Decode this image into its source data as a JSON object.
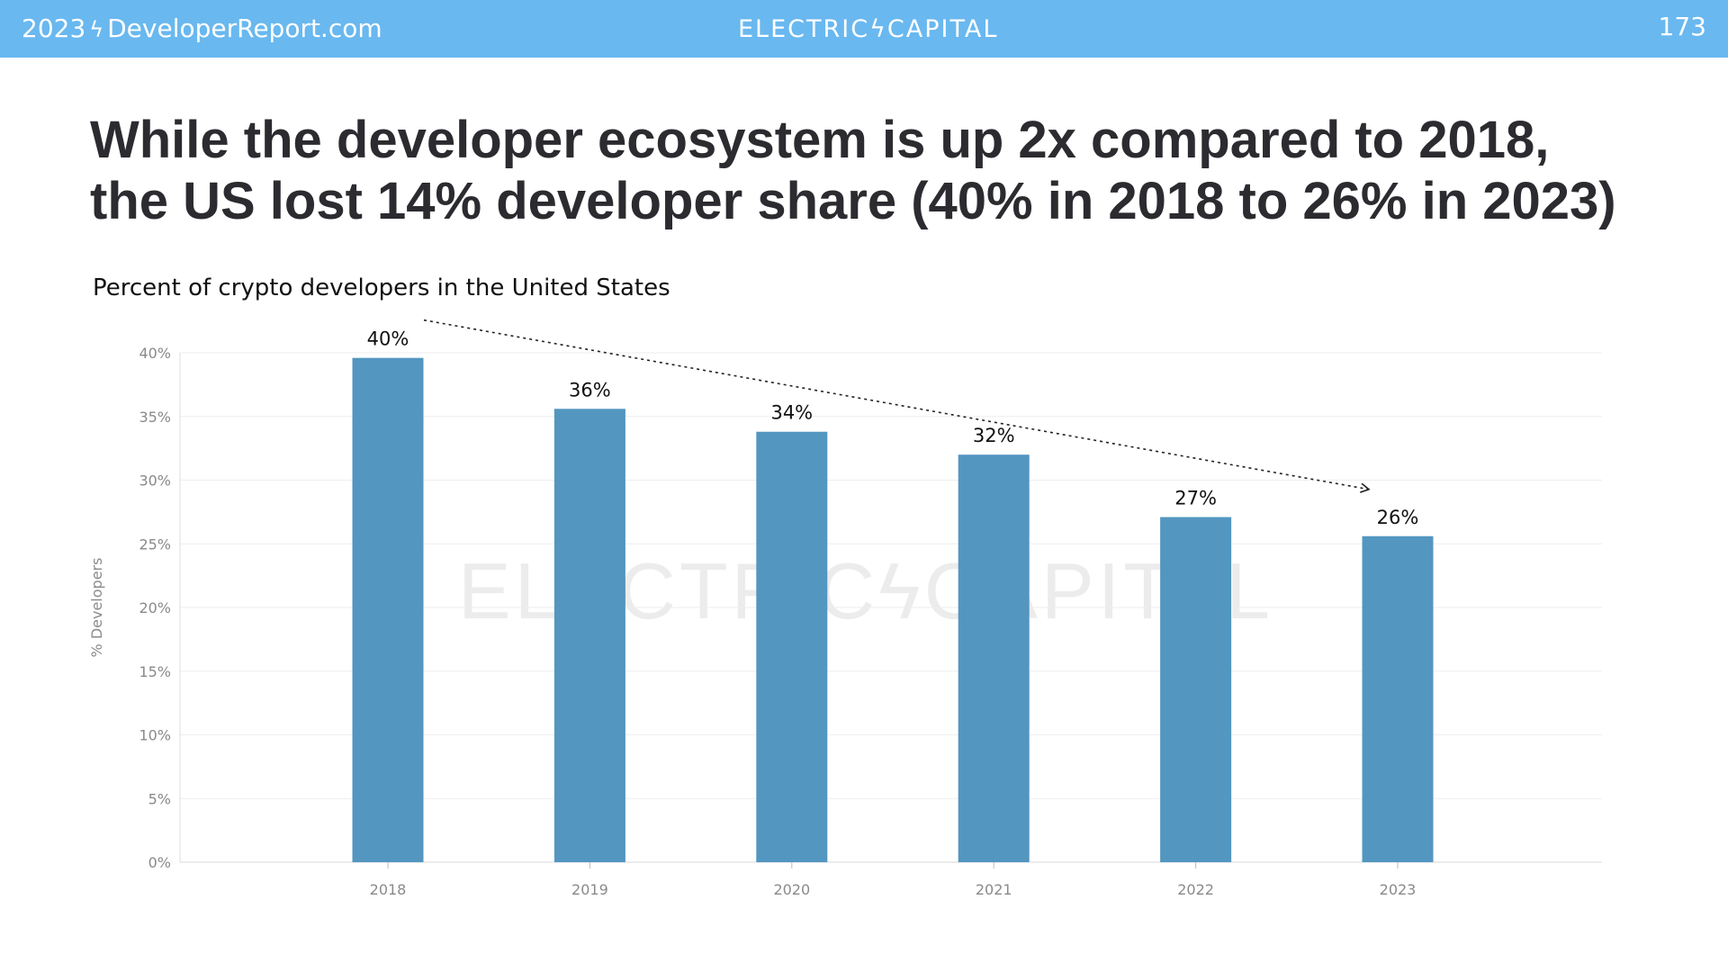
{
  "header": {
    "site_year": "2023",
    "site_name": "DeveloperReport.com",
    "brand": "ELECTRICϟCAPITAL",
    "page_number": "173",
    "bolt_icon": "lightning-bolt-icon"
  },
  "headline": {
    "line1": "While the developer ecosystem is up 2x compared to 2018,",
    "line2": "the US lost 14% developer share (40% in 2018 to 26% in 2023)"
  },
  "colors": {
    "header_bg": "#69b8ef",
    "bar": "#5396c0",
    "headline": "#2b2b30"
  },
  "watermark": "ELECTRICϟCAPITAL",
  "chart_data": {
    "type": "bar",
    "title": "Percent of crypto developers in the United States",
    "xlabel": "",
    "ylabel": "% Developers",
    "categories": [
      "2018",
      "2019",
      "2020",
      "2021",
      "2022",
      "2023"
    ],
    "values": [
      39.6,
      35.6,
      33.8,
      32.0,
      27.1,
      25.6
    ],
    "data_labels": [
      "40%",
      "36%",
      "34%",
      "32%",
      "27%",
      "26%"
    ],
    "ylim": [
      0,
      40
    ],
    "yticks": [
      0,
      5,
      10,
      15,
      20,
      25,
      30,
      35,
      40
    ],
    "ytick_labels": [
      "0%",
      "5%",
      "10%",
      "15%",
      "20%",
      "25%",
      "30%",
      "35%",
      "40%"
    ],
    "grid": true,
    "trend_annotation": "dotted downward trend arrow from 2018 to 2023"
  }
}
